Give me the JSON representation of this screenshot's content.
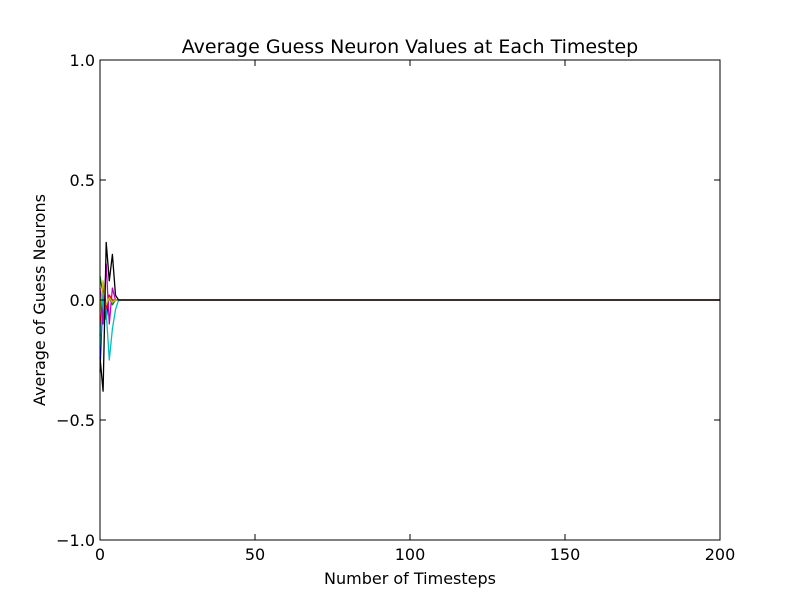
{
  "chart_data": {
    "type": "line",
    "title": "Average Guess Neuron Values at Each Timestep",
    "xlabel": "Number of Timesteps",
    "ylabel": "Average of Guess Neurons",
    "xlim": [
      0,
      200
    ],
    "ylim": [
      -1.0,
      1.0
    ],
    "x_ticks": [
      "0",
      "50",
      "100",
      "150",
      "200"
    ],
    "y_ticks": [
      "−1.0",
      "−0.5",
      "0.0",
      "0.5",
      "1.0"
    ],
    "x_tick_values": [
      0,
      50,
      100,
      150,
      200
    ],
    "y_tick_values": [
      -1.0,
      -0.5,
      0.0,
      0.5,
      1.0
    ],
    "grid": false,
    "legend": false,
    "series": [
      {
        "color": "#0000ff",
        "x": [
          0,
          1,
          2,
          3,
          4,
          5,
          6,
          7,
          8,
          200
        ],
        "y": [
          -0.3,
          0.05,
          -0.08,
          0.02,
          -0.01,
          0.0,
          0.0,
          0.0,
          0.0,
          0.0
        ]
      },
      {
        "color": "#008000",
        "x": [
          0,
          1,
          2,
          3,
          4,
          5,
          6,
          7,
          8,
          200
        ],
        "y": [
          0.1,
          0.02,
          -0.03,
          0.01,
          -0.02,
          0.0,
          0.0,
          0.0,
          0.0,
          0.0
        ]
      },
      {
        "color": "#ff0000",
        "x": [
          0,
          1,
          2,
          3,
          4,
          5,
          6,
          7,
          8,
          200
        ],
        "y": [
          -0.15,
          0.06,
          -0.04,
          0.02,
          0.0,
          0.0,
          0.0,
          0.0,
          0.0,
          0.0
        ]
      },
      {
        "color": "#00bfbf",
        "x": [
          0,
          1,
          2,
          3,
          4,
          5,
          6,
          7,
          8,
          200
        ],
        "y": [
          -0.2,
          0.03,
          -0.05,
          -0.25,
          -0.12,
          -0.04,
          0.0,
          0.0,
          0.0,
          0.0
        ]
      },
      {
        "color": "#bf00bf",
        "x": [
          0,
          1,
          2,
          3,
          4,
          5,
          6,
          7,
          8,
          200
        ],
        "y": [
          0.05,
          -0.1,
          0.15,
          -0.1,
          0.05,
          0.0,
          0.0,
          0.0,
          0.0,
          0.0
        ]
      },
      {
        "color": "#bfbf00",
        "x": [
          0,
          1,
          2,
          3,
          4,
          5,
          6,
          7,
          8,
          200
        ],
        "y": [
          -0.05,
          0.08,
          -0.02,
          0.01,
          -0.01,
          0.0,
          0.0,
          0.0,
          0.0,
          0.0
        ]
      },
      {
        "color": "#000000",
        "x": [
          0,
          1,
          2,
          3,
          4,
          5,
          6,
          7,
          8,
          200
        ],
        "y": [
          -0.24,
          -0.38,
          0.24,
          0.08,
          0.19,
          0.02,
          0.0,
          0.0,
          0.0,
          0.0
        ]
      }
    ]
  }
}
